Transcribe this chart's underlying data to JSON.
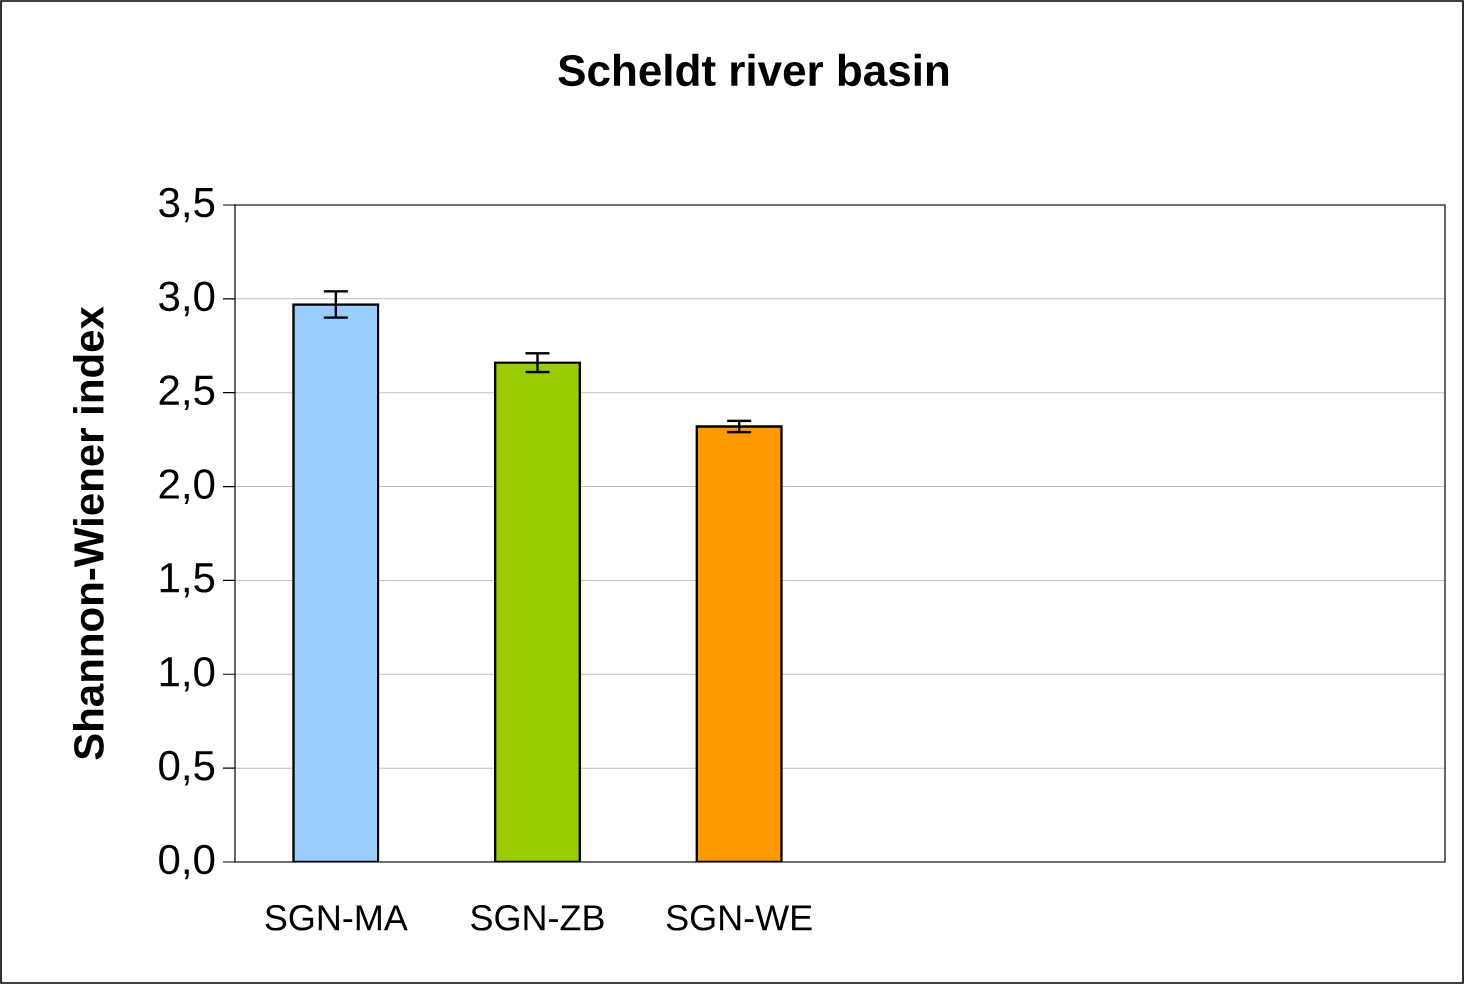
{
  "chart_data": {
    "type": "bar",
    "title": "Scheldt river basin",
    "ylabel": "Shannon-Wiener index",
    "categories": [
      "SGN-MA",
      "SGN-ZB",
      "SGN-WE",
      null,
      null,
      null
    ],
    "values": [
      2.97,
      2.66,
      2.32,
      null,
      null,
      null
    ],
    "errors": [
      0.07,
      0.05,
      0.03,
      null,
      null,
      null
    ],
    "colors": [
      "#99ccff",
      "#99cc00",
      "#ff9900",
      null,
      null,
      null
    ],
    "ylim": [
      0,
      3.5
    ],
    "yticks": [
      {
        "value": 0,
        "label": "0,0"
      },
      {
        "value": 0.5,
        "label": "0,5"
      },
      {
        "value": 1,
        "label": "1,0"
      },
      {
        "value": 1.5,
        "label": "1,5"
      },
      {
        "value": 2,
        "label": "2,0"
      },
      {
        "value": 2.5,
        "label": "2,5"
      },
      {
        "value": 3,
        "label": "3,0"
      },
      {
        "value": 3.5,
        "label": "3,5"
      }
    ],
    "grid": "y"
  }
}
